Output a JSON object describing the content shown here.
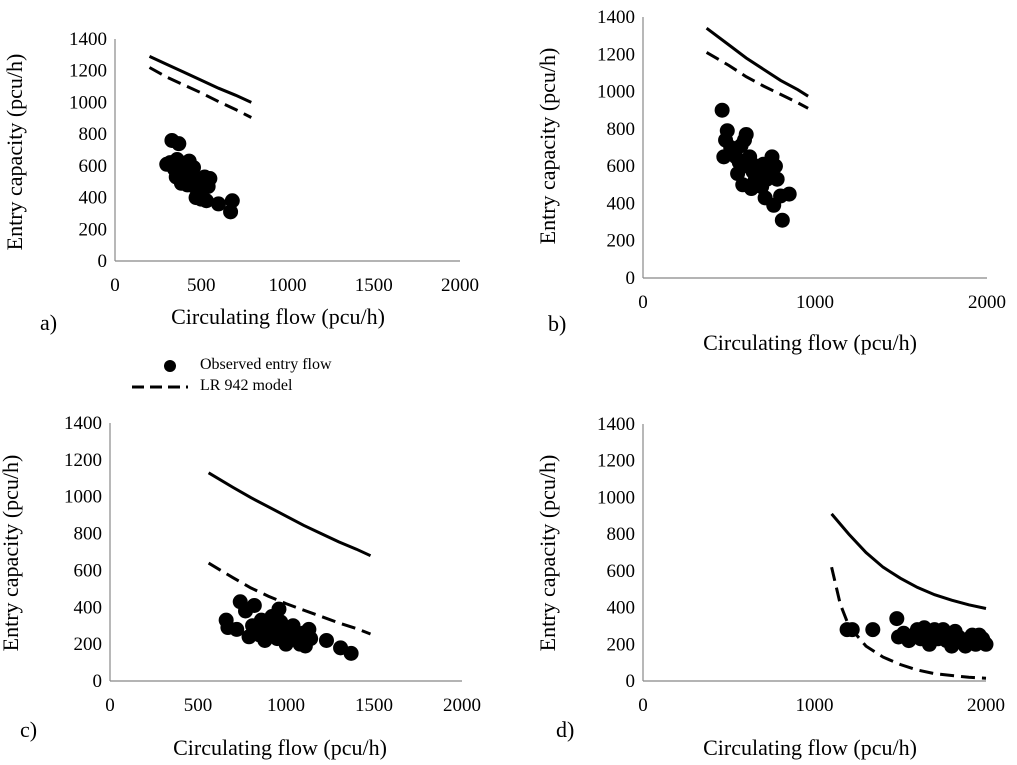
{
  "legend": {
    "observed": "Observed entry flow",
    "lr942": "LR 942 model"
  },
  "chart_data": [
    {
      "id": "a",
      "type": "scatter",
      "panel_label": "a)",
      "xlabel": "Circulating flow (pcu/h)",
      "ylabel": "Entry capacity (pcu/h)",
      "xlim": [
        0,
        2000
      ],
      "ylim": [
        0,
        1400
      ],
      "xticks": [
        0,
        500,
        1000,
        1500,
        2000
      ],
      "yticks": [
        0,
        200,
        400,
        600,
        800,
        1000,
        1200,
        1400
      ],
      "grid": false,
      "series": [
        {
          "name": "Observed entry flow",
          "kind": "points",
          "points": [
            [
              300,
              610
            ],
            [
              320,
              620
            ],
            [
              330,
              760
            ],
            [
              345,
              580
            ],
            [
              355,
              530
            ],
            [
              360,
              640
            ],
            [
              370,
              740
            ],
            [
              375,
              560
            ],
            [
              385,
              490
            ],
            [
              395,
              600
            ],
            [
              400,
              510
            ],
            [
              410,
              570
            ],
            [
              420,
              480
            ],
            [
              425,
              610
            ],
            [
              430,
              630
            ],
            [
              440,
              540
            ],
            [
              450,
              500
            ],
            [
              455,
              590
            ],
            [
              460,
              470
            ],
            [
              470,
              400
            ],
            [
              475,
              520
            ],
            [
              485,
              430
            ],
            [
              495,
              450
            ],
            [
              500,
              390
            ],
            [
              510,
              480
            ],
            [
              520,
              530
            ],
            [
              530,
              380
            ],
            [
              540,
              470
            ],
            [
              550,
              520
            ],
            [
              600,
              360
            ],
            [
              670,
              310
            ],
            [
              680,
              380
            ]
          ]
        },
        {
          "kind": "solid_curve",
          "points": [
            [
              200,
              1290
            ],
            [
              300,
              1240
            ],
            [
              400,
              1190
            ],
            [
              500,
              1140
            ],
            [
              600,
              1090
            ],
            [
              700,
              1045
            ],
            [
              790,
              1000
            ]
          ]
        },
        {
          "name": "LR 942 model",
          "kind": "dashed_curve",
          "points": [
            [
              200,
              1220
            ],
            [
              300,
              1160
            ],
            [
              400,
              1110
            ],
            [
              500,
              1060
            ],
            [
              600,
              1005
            ],
            [
              700,
              955
            ],
            [
              790,
              905
            ]
          ]
        }
      ]
    },
    {
      "id": "b",
      "type": "scatter",
      "panel_label": "b)",
      "xlabel": "Circulating flow (pcu/h)",
      "ylabel": "Entry capacity (pcu/h)",
      "xlim": [
        0,
        2000
      ],
      "ylim": [
        0,
        1400
      ],
      "xticks": [
        0,
        1000,
        2000
      ],
      "yticks": [
        0,
        200,
        400,
        600,
        800,
        1000,
        1200,
        1400
      ],
      "grid": false,
      "series": [
        {
          "name": "Observed entry flow",
          "kind": "points",
          "points": [
            [
              460,
              900
            ],
            [
              470,
              650
            ],
            [
              480,
              740
            ],
            [
              490,
              790
            ],
            [
              510,
              700
            ],
            [
              530,
              680
            ],
            [
              540,
              650
            ],
            [
              550,
              560
            ],
            [
              560,
              620
            ],
            [
              570,
              710
            ],
            [
              580,
              500
            ],
            [
              590,
              740
            ],
            [
              600,
              770
            ],
            [
              610,
              600
            ],
            [
              620,
              650
            ],
            [
              630,
              480
            ],
            [
              640,
              570
            ],
            [
              650,
              520
            ],
            [
              660,
              600
            ],
            [
              680,
              560
            ],
            [
              690,
              490
            ],
            [
              700,
              610
            ],
            [
              710,
              430
            ],
            [
              720,
              530
            ],
            [
              740,
              560
            ],
            [
              750,
              650
            ],
            [
              760,
              390
            ],
            [
              770,
              600
            ],
            [
              780,
              530
            ],
            [
              800,
              440
            ],
            [
              810,
              310
            ],
            [
              850,
              450
            ]
          ]
        },
        {
          "kind": "solid_curve",
          "points": [
            [
              370,
              1340
            ],
            [
              500,
              1250
            ],
            [
              600,
              1180
            ],
            [
              700,
              1120
            ],
            [
              800,
              1060
            ],
            [
              900,
              1010
            ],
            [
              960,
              975
            ]
          ]
        },
        {
          "name": "LR 942 model",
          "kind": "dashed_curve",
          "points": [
            [
              370,
              1210
            ],
            [
              500,
              1140
            ],
            [
              600,
              1080
            ],
            [
              700,
              1030
            ],
            [
              800,
              985
            ],
            [
              900,
              940
            ],
            [
              960,
              910
            ]
          ]
        }
      ]
    },
    {
      "id": "c",
      "type": "scatter",
      "panel_label": "c)",
      "xlabel": "Circulating flow (pcu/h)",
      "ylabel": "Entry capacity (pcu/h)",
      "xlim": [
        0,
        2000
      ],
      "ylim": [
        0,
        1400
      ],
      "xticks": [
        0,
        500,
        1000,
        1500,
        2000
      ],
      "yticks": [
        0,
        200,
        400,
        600,
        800,
        1000,
        1200,
        1400
      ],
      "grid": false,
      "series": [
        {
          "name": "Observed entry flow",
          "kind": "points",
          "points": [
            [
              660,
              330
            ],
            [
              670,
              290
            ],
            [
              720,
              280
            ],
            [
              740,
              430
            ],
            [
              770,
              380
            ],
            [
              790,
              240
            ],
            [
              810,
              300
            ],
            [
              820,
              410
            ],
            [
              840,
              280
            ],
            [
              850,
              250
            ],
            [
              860,
              330
            ],
            [
              880,
              220
            ],
            [
              890,
              300
            ],
            [
              900,
              260
            ],
            [
              920,
              350
            ],
            [
              940,
              290
            ],
            [
              950,
              230
            ],
            [
              960,
              390
            ],
            [
              970,
              320
            ],
            [
              990,
              280
            ],
            [
              1000,
              200
            ],
            [
              1010,
              250
            ],
            [
              1040,
              300
            ],
            [
              1060,
              240
            ],
            [
              1080,
              200
            ],
            [
              1100,
              260
            ],
            [
              1110,
              190
            ],
            [
              1130,
              280
            ],
            [
              1140,
              230
            ],
            [
              1230,
              220
            ],
            [
              1310,
              180
            ],
            [
              1370,
              150
            ]
          ]
        },
        {
          "kind": "solid_curve",
          "points": [
            [
              560,
              1130
            ],
            [
              700,
              1050
            ],
            [
              800,
              995
            ],
            [
              900,
              945
            ],
            [
              1000,
              895
            ],
            [
              1100,
              845
            ],
            [
              1200,
              800
            ],
            [
              1300,
              755
            ],
            [
              1400,
              715
            ],
            [
              1480,
              680
            ]
          ]
        },
        {
          "name": "LR 942 model",
          "kind": "dashed_curve",
          "points": [
            [
              560,
              640
            ],
            [
              700,
              560
            ],
            [
              800,
              505
            ],
            [
              900,
              460
            ],
            [
              1000,
              420
            ],
            [
              1100,
              385
            ],
            [
              1200,
              350
            ],
            [
              1300,
              315
            ],
            [
              1400,
              285
            ],
            [
              1480,
              255
            ]
          ]
        }
      ]
    },
    {
      "id": "d",
      "type": "scatter",
      "panel_label": "d)",
      "xlabel": "Circulating flow (pcu/h)",
      "ylabel": "Entry capacity (pcu/h)",
      "xlim": [
        0,
        2000
      ],
      "ylim": [
        0,
        1400
      ],
      "xticks": [
        0,
        1000,
        2000
      ],
      "yticks": [
        0,
        200,
        400,
        600,
        800,
        1000,
        1200,
        1400
      ],
      "grid": false,
      "series": [
        {
          "name": "Observed entry flow",
          "kind": "points",
          "points": [
            [
              1190,
              280
            ],
            [
              1220,
              280
            ],
            [
              1340,
              280
            ],
            [
              1480,
              340
            ],
            [
              1490,
              240
            ],
            [
              1520,
              260
            ],
            [
              1550,
              220
            ],
            [
              1580,
              250
            ],
            [
              1600,
              280
            ],
            [
              1620,
              230
            ],
            [
              1640,
              290
            ],
            [
              1660,
              240
            ],
            [
              1670,
              200
            ],
            [
              1690,
              270
            ],
            [
              1700,
              280
            ],
            [
              1720,
              230
            ],
            [
              1730,
              260
            ],
            [
              1750,
              280
            ],
            [
              1770,
              220
            ],
            [
              1790,
              250
            ],
            [
              1800,
              190
            ],
            [
              1820,
              270
            ],
            [
              1840,
              240
            ],
            [
              1860,
              220
            ],
            [
              1880,
              190
            ],
            [
              1900,
              230
            ],
            [
              1920,
              250
            ],
            [
              1940,
              200
            ],
            [
              1960,
              250
            ],
            [
              1980,
              230
            ],
            [
              1990,
              210
            ],
            [
              2000,
              200
            ]
          ]
        },
        {
          "kind": "solid_curve",
          "points": [
            [
              1100,
              910
            ],
            [
              1200,
              800
            ],
            [
              1300,
              700
            ],
            [
              1400,
              620
            ],
            [
              1500,
              560
            ],
            [
              1600,
              510
            ],
            [
              1700,
              470
            ],
            [
              1800,
              440
            ],
            [
              1900,
              415
            ],
            [
              2000,
              395
            ]
          ]
        },
        {
          "name": "LR 942 model",
          "kind": "dashed_curve",
          "points": [
            [
              1100,
              620
            ],
            [
              1150,
              420
            ],
            [
              1200,
              300
            ],
            [
              1300,
              190
            ],
            [
              1400,
              130
            ],
            [
              1500,
              90
            ],
            [
              1600,
              60
            ],
            [
              1700,
              40
            ],
            [
              1800,
              30
            ],
            [
              1900,
              20
            ],
            [
              2000,
              15
            ]
          ]
        }
      ]
    }
  ]
}
